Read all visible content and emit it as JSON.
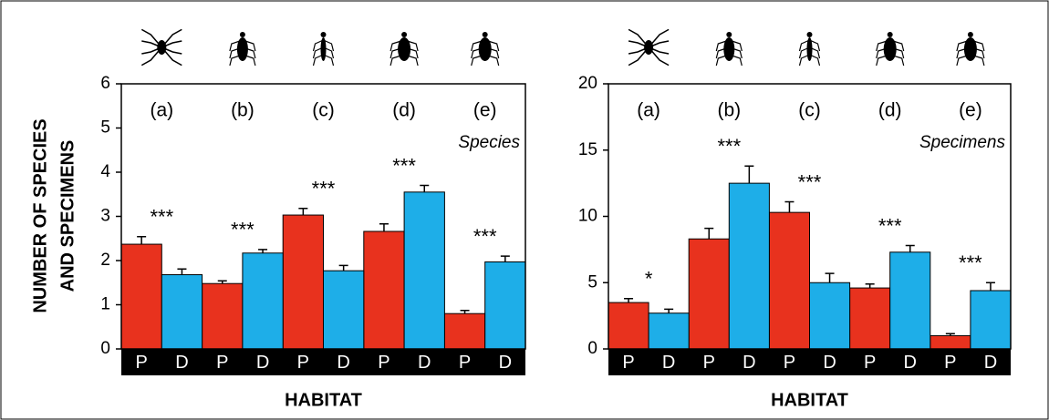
{
  "chart_data": [
    {
      "type": "bar",
      "panel_label": "Species",
      "ylabel": [
        "NUMBER OF SPECIES",
        "AND SPECIMENS"
      ],
      "xlabel": "HABITAT",
      "categories": [
        "(a)",
        "(b)",
        "(c)",
        "(d)",
        "(e)"
      ],
      "significance": [
        "***",
        "***",
        "***",
        "***",
        "***"
      ],
      "series": [
        {
          "name": "P",
          "color": "#e8321e",
          "values": [
            2.37,
            1.48,
            3.03,
            2.66,
            0.8
          ],
          "errors": [
            0.17,
            0.06,
            0.15,
            0.17,
            0.07
          ]
        },
        {
          "name": "D",
          "color": "#1eaee8",
          "values": [
            1.68,
            2.17,
            1.77,
            3.55,
            1.97
          ],
          "errors": [
            0.13,
            0.08,
            0.12,
            0.15,
            0.13
          ]
        }
      ],
      "ylim": [
        0,
        6
      ],
      "yticks": [
        0,
        1,
        2,
        3,
        4,
        5,
        6
      ]
    },
    {
      "type": "bar",
      "panel_label": "Specimens",
      "xlabel": "HABITAT",
      "categories": [
        "(a)",
        "(b)",
        "(c)",
        "(d)",
        "(e)"
      ],
      "significance": [
        "*",
        "***",
        "***",
        "***",
        "***"
      ],
      "series": [
        {
          "name": "P",
          "color": "#e8321e",
          "values": [
            3.5,
            8.3,
            10.3,
            4.6,
            1.0
          ],
          "errors": [
            0.3,
            0.8,
            0.8,
            0.3,
            0.15
          ]
        },
        {
          "name": "D",
          "color": "#1eaee8",
          "values": [
            2.7,
            12.5,
            5.0,
            7.3,
            4.4
          ],
          "errors": [
            0.3,
            1.3,
            0.7,
            0.5,
            0.6
          ]
        }
      ],
      "ylim": [
        0,
        20
      ],
      "yticks": [
        0,
        5,
        10,
        15,
        20
      ]
    }
  ]
}
